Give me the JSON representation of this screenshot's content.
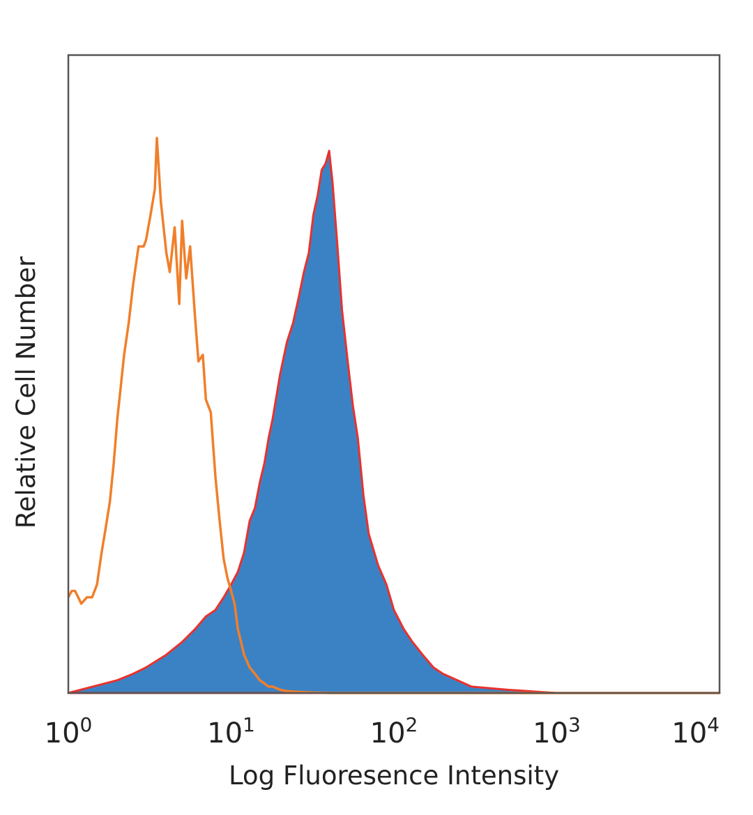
{
  "chart_data": {
    "type": "area",
    "title": "",
    "xlabel": "Log Fluoresence Intensity",
    "ylabel": "Relative Cell Number",
    "x_scale": "log",
    "xlim": [
      1,
      10000
    ],
    "ylim": [
      0,
      1
    ],
    "grid": false,
    "legend": "none",
    "x_ticks": [
      {
        "base": "10",
        "exp": "0",
        "value": 1
      },
      {
        "base": "10",
        "exp": "1",
        "value": 10
      },
      {
        "base": "10",
        "exp": "2",
        "value": 100
      },
      {
        "base": "10",
        "exp": "3",
        "value": 1000
      },
      {
        "base": "10",
        "exp": "4",
        "value": 10000
      }
    ],
    "series": [
      {
        "style": "outline",
        "color": "#f07f2a",
        "x": [
          1.0,
          1.05,
          1.1,
          1.15,
          1.2,
          1.3,
          1.4,
          1.5,
          1.6,
          1.7,
          1.8,
          1.9,
          2.0,
          2.1,
          2.2,
          2.35,
          2.5,
          2.7,
          2.9,
          3.0,
          3.2,
          3.4,
          3.5,
          3.7,
          4.0,
          4.2,
          4.5,
          4.8,
          5.0,
          5.3,
          5.6,
          6.0,
          6.3,
          6.7,
          7.0,
          7.5,
          8.0,
          8.5,
          9.0,
          9.5,
          10.0,
          10.5,
          11.0,
          11.5,
          12.0,
          13.0,
          14.0,
          15.0,
          16.0,
          17.0,
          18.0,
          20.0,
          22.0,
          25.0,
          30.0,
          40.0,
          100.0,
          1000.0,
          10000.0
        ],
        "y": [
          0.15,
          0.16,
          0.16,
          0.15,
          0.14,
          0.15,
          0.15,
          0.17,
          0.22,
          0.26,
          0.3,
          0.36,
          0.43,
          0.48,
          0.53,
          0.58,
          0.64,
          0.7,
          0.7,
          0.71,
          0.75,
          0.79,
          0.87,
          0.77,
          0.69,
          0.66,
          0.73,
          0.61,
          0.74,
          0.65,
          0.7,
          0.59,
          0.52,
          0.53,
          0.46,
          0.44,
          0.34,
          0.27,
          0.21,
          0.18,
          0.16,
          0.14,
          0.1,
          0.08,
          0.06,
          0.04,
          0.03,
          0.02,
          0.015,
          0.01,
          0.01,
          0.005,
          0.003,
          0.002,
          0.001,
          0.0,
          0.0,
          0.0,
          0.0
        ]
      },
      {
        "style": "filled",
        "color": "#3b82c4",
        "edge_color": "#e8322e",
        "x": [
          1.0,
          2.0,
          2.5,
          3.0,
          4.0,
          5.0,
          6.0,
          7.0,
          8.0,
          9.0,
          10.0,
          11.0,
          12.0,
          13.0,
          14.0,
          15.0,
          16.0,
          17.0,
          18.0,
          20.0,
          22.0,
          24.0,
          26.0,
          28.0,
          30.0,
          32.0,
          34.0,
          36.0,
          38.0,
          40.0,
          42.0,
          45.0,
          48.0,
          52.0,
          56.0,
          60.0,
          65.0,
          70.0,
          80.0,
          90.0,
          100.0,
          115.0,
          130.0,
          150.0,
          175.0,
          200.0,
          300.0,
          500.0,
          1000.0,
          10000.0
        ],
        "y": [
          0.0,
          0.02,
          0.03,
          0.04,
          0.06,
          0.08,
          0.1,
          0.12,
          0.13,
          0.15,
          0.17,
          0.19,
          0.22,
          0.27,
          0.29,
          0.33,
          0.36,
          0.4,
          0.43,
          0.5,
          0.55,
          0.58,
          0.62,
          0.66,
          0.69,
          0.75,
          0.78,
          0.82,
          0.83,
          0.85,
          0.8,
          0.7,
          0.6,
          0.52,
          0.45,
          0.4,
          0.31,
          0.25,
          0.2,
          0.17,
          0.13,
          0.1,
          0.08,
          0.06,
          0.04,
          0.03,
          0.01,
          0.005,
          0.0,
          0.0
        ]
      }
    ]
  }
}
